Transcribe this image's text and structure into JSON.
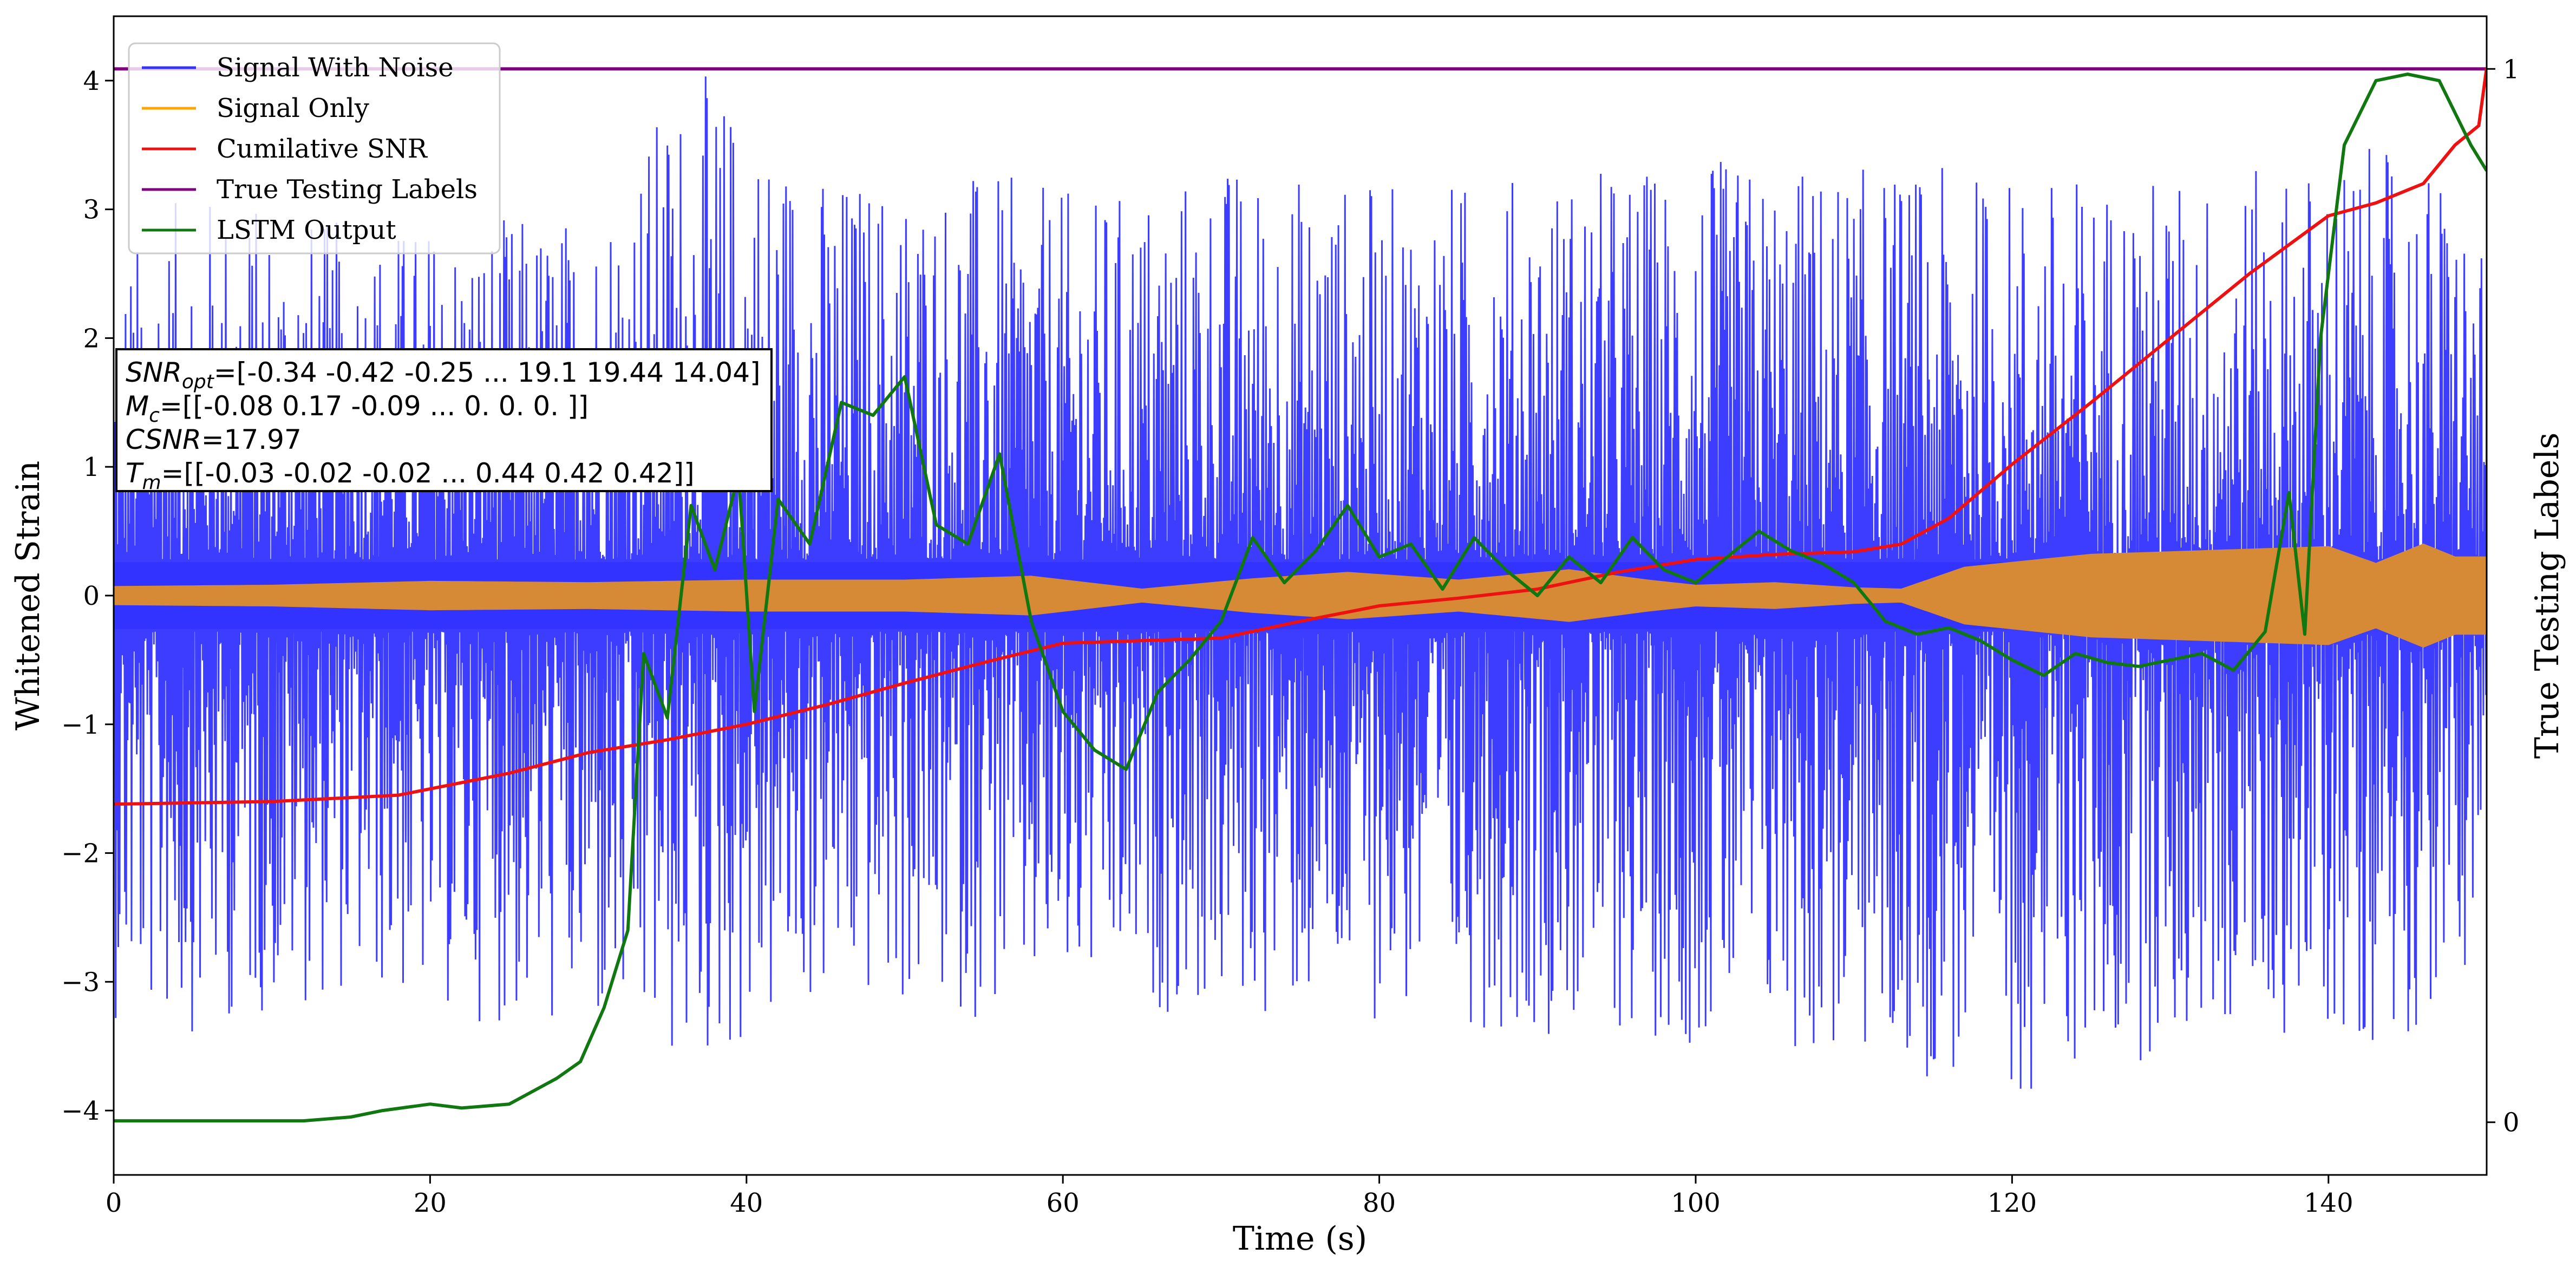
{
  "chart_data": {
    "type": "line",
    "xlabel": "Time (s)",
    "ylabel": "Whitened Strain",
    "ylabel_right": "True Testing Labels",
    "xlim": [
      0,
      150
    ],
    "ylim": [
      -4.5,
      4.5
    ],
    "ylim_right": [
      -0.05,
      1.05
    ],
    "x_ticks": [
      "0",
      "20",
      "40",
      "60",
      "80",
      "100",
      "120",
      "140"
    ],
    "y_ticks": [
      "−4",
      "−3",
      "−2",
      "−1",
      "0",
      "1",
      "2",
      "3",
      "4"
    ],
    "y_right_ticks": [
      "0",
      "1"
    ],
    "legend_position": "top-left",
    "grid": false,
    "series": [
      {
        "name": "Signal With Noise",
        "color": "#3333ff",
        "axis": "left",
        "style": "dense noisy oscillation about 0",
        "envelope": {
          "x": [
            0,
            5,
            15,
            30,
            36.5,
            45,
            55,
            62,
            70,
            80,
            100,
            120,
            135,
            142,
            148,
            150
          ],
          "upper": [
            2.6,
            3.2,
            2.9,
            3.0,
            4.15,
            3.3,
            3.3,
            3.1,
            3.4,
            3.2,
            3.4,
            3.3,
            3.3,
            3.5,
            3.3,
            2.5
          ],
          "lower": [
            -3.3,
            -3.4,
            -3.1,
            -3.5,
            -3.8,
            -3.2,
            -3.3,
            -3.2,
            -3.3,
            -3.3,
            -3.5,
            -3.9,
            -3.4,
            -3.5,
            -3.3,
            -2.0
          ]
        }
      },
      {
        "name": "Signal Only",
        "color": "#d68a36",
        "axis": "left",
        "style": "filled chirp envelope about 0",
        "envelope": {
          "x": [
            0,
            10,
            20,
            30,
            40,
            50,
            58,
            65,
            72,
            78,
            85,
            92,
            97,
            100,
            105,
            110,
            113,
            117,
            125,
            135,
            140,
            143,
            146,
            148,
            150
          ],
          "amplitude": [
            0.07,
            0.08,
            0.11,
            0.1,
            0.12,
            0.12,
            0.15,
            0.05,
            0.13,
            0.18,
            0.12,
            0.2,
            0.12,
            0.08,
            0.1,
            0.06,
            0.05,
            0.22,
            0.32,
            0.36,
            0.38,
            0.25,
            0.4,
            0.3,
            0.3
          ]
        }
      },
      {
        "name": "Cumilative SNR",
        "color": "#ee1111",
        "axis": "left",
        "x": [
          0,
          10,
          18,
          25,
          30,
          35,
          40,
          45,
          50,
          55,
          60,
          65,
          70,
          75,
          80,
          85,
          90,
          95,
          100,
          105,
          110,
          113,
          116,
          120,
          125,
          130,
          135,
          140,
          143,
          146,
          148,
          149.5,
          150
        ],
        "y": [
          -1.62,
          -1.6,
          -1.55,
          -1.38,
          -1.22,
          -1.12,
          -1.0,
          -0.85,
          -0.68,
          -0.52,
          -0.37,
          -0.35,
          -0.33,
          -0.2,
          -0.08,
          -0.02,
          0.05,
          0.18,
          0.28,
          0.32,
          0.34,
          0.4,
          0.6,
          1.02,
          1.5,
          2.0,
          2.5,
          2.95,
          3.05,
          3.2,
          3.5,
          3.65,
          4.1
        ]
      },
      {
        "name": "True Testing Labels",
        "color": "#800080",
        "axis": "right",
        "x": [
          0,
          150
        ],
        "y": [
          1,
          1
        ]
      },
      {
        "name": "LSTM Output",
        "color": "#117711",
        "axis": "left",
        "x": [
          0,
          12,
          15,
          17,
          20,
          22,
          25,
          28,
          29.5,
          31,
          32.5,
          33.5,
          35,
          36.5,
          38,
          39.5,
          40.5,
          42,
          44,
          46,
          48,
          50,
          52,
          54,
          56,
          58,
          60,
          62,
          64,
          66,
          68,
          70,
          72,
          74,
          76,
          78,
          80,
          82,
          84,
          86,
          88,
          90,
          92,
          94,
          96,
          98,
          100,
          102,
          104,
          106,
          108,
          110,
          112,
          114,
          116,
          118,
          120,
          122,
          124,
          126,
          128,
          130,
          132,
          134,
          136,
          137.5,
          138.5,
          139.5,
          141,
          143,
          145,
          147,
          149,
          150
        ],
        "y": [
          -4.08,
          -4.08,
          -4.05,
          -4.0,
          -3.95,
          -3.98,
          -3.95,
          -3.75,
          -3.62,
          -3.2,
          -2.6,
          -0.45,
          -0.95,
          0.7,
          0.2,
          0.95,
          -0.9,
          0.75,
          0.4,
          1.5,
          1.4,
          1.7,
          0.55,
          0.4,
          1.1,
          -0.2,
          -0.9,
          -1.2,
          -1.35,
          -0.75,
          -0.5,
          -0.2,
          0.45,
          0.1,
          0.35,
          0.7,
          0.3,
          0.4,
          0.05,
          0.45,
          0.2,
          0.0,
          0.3,
          0.1,
          0.45,
          0.2,
          0.1,
          0.3,
          0.5,
          0.35,
          0.25,
          0.1,
          -0.2,
          -0.3,
          -0.25,
          -0.35,
          -0.5,
          -0.62,
          -0.45,
          -0.52,
          -0.55,
          -0.5,
          -0.45,
          -0.58,
          -0.28,
          0.8,
          -0.3,
          2.0,
          3.5,
          4.0,
          4.05,
          4.0,
          3.5,
          3.3
        ]
      }
    ],
    "annotation": {
      "lines": [
        {
          "sym": "SNR",
          "sub": "opt",
          "rest": "=[-0.34 -0.42 -0.25 ... 19.1  19.44 14.04]"
        },
        {
          "sym": "M",
          "sub": "c",
          "rest": "=[[-0.08  0.17 -0.09 ...  0.    0.    0.  ]]"
        },
        {
          "sym": "CSNR",
          "sub": "",
          "rest": "=17.97"
        },
        {
          "sym": "T",
          "sub": "m",
          "rest": "=[[-0.03 -0.02 -0.02 ...  0.44  0.42  0.42]]"
        }
      ]
    }
  }
}
